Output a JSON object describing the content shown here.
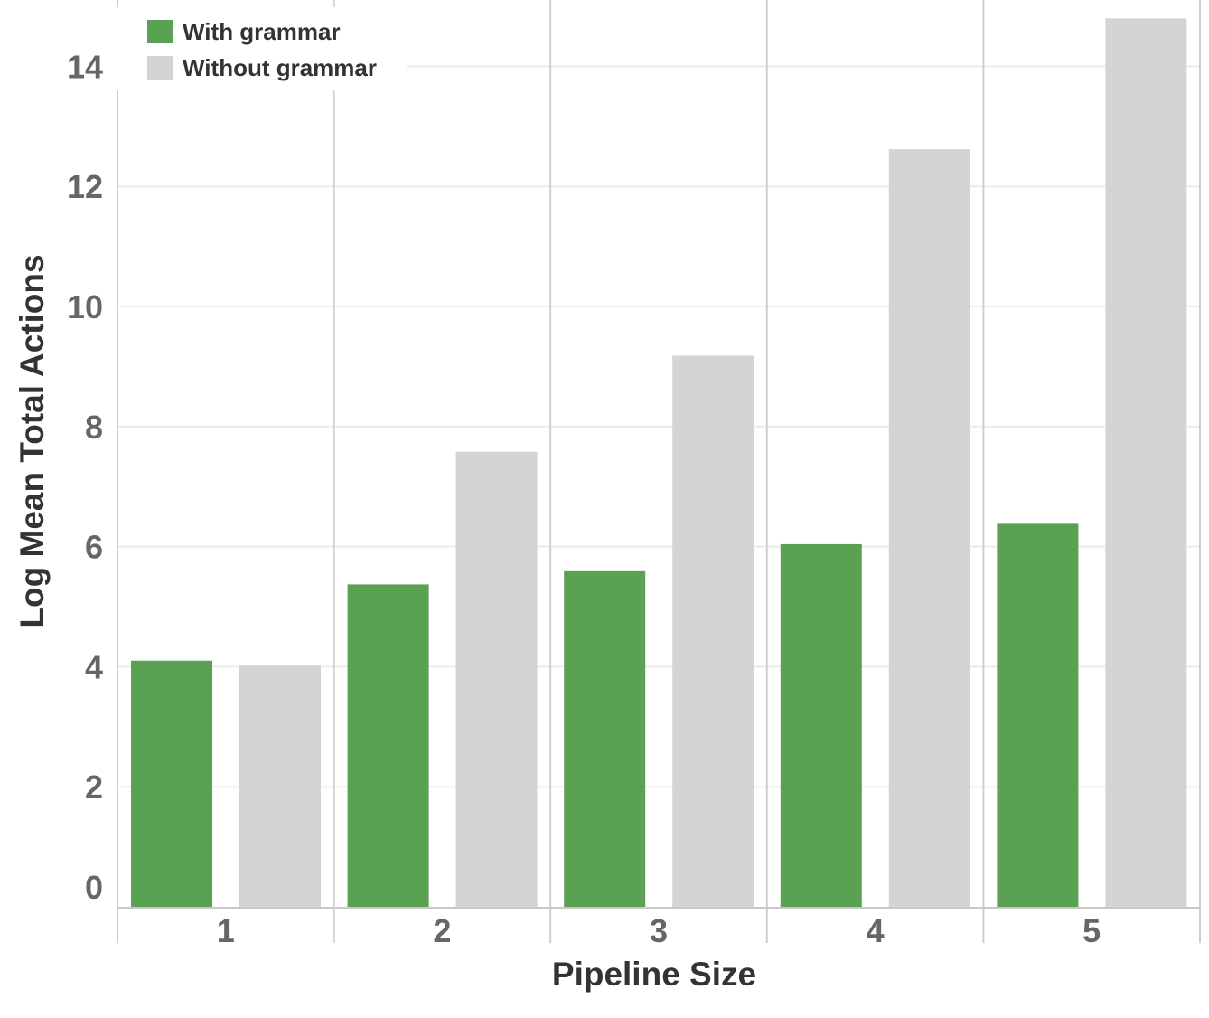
{
  "chart_data": {
    "type": "bar",
    "categories": [
      "1",
      "2",
      "3",
      "4",
      "5"
    ],
    "series": [
      {
        "name": "With grammar",
        "color": "#5aa152",
        "values": [
          4.1,
          5.37,
          5.59,
          6.04,
          6.38
        ]
      },
      {
        "name": "Without grammar",
        "color": "#d4d4d4",
        "values": [
          4.02,
          7.58,
          9.18,
          12.62,
          14.8
        ]
      }
    ],
    "xlabel": "Pipeline Size",
    "ylabel": "Log Mean Total Actions",
    "ylim": [
      0,
      15
    ],
    "yticks": [
      0,
      2,
      4,
      6,
      8,
      10,
      12,
      14
    ],
    "grid": true,
    "legend_position": "top-left"
  }
}
